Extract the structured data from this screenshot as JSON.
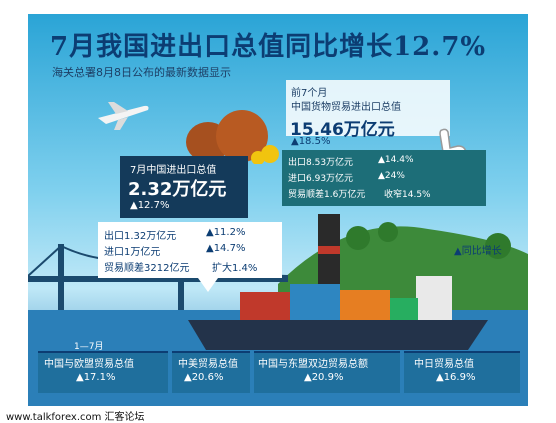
{
  "header": {
    "title": "7月我国进出口总值同比增长12.7%",
    "subtitle": "海关总署8月8日公布的最新数据显示"
  },
  "first_seven_months": {
    "label_line1": "前7个月",
    "label_line2": "中国货物贸易进出口总值",
    "total": "15.46万亿元",
    "total_growth": "▲18.5%",
    "export": "出口8.53万亿元",
    "export_growth": "▲14.4%",
    "import": "进口6.93万亿元",
    "import_growth": "▲24%",
    "surplus": "贸易顺差1.6万亿元",
    "surplus_change": "收窄14.5%"
  },
  "july": {
    "label": "7月中国进出口总值",
    "total": "2.32万亿元",
    "total_growth": "▲12.7%",
    "export": "出口1.32万亿元",
    "export_growth": "▲11.2%",
    "import": "进口1万亿元",
    "import_growth": "▲14.7%",
    "surplus": "贸易顺差3212亿元",
    "surplus_change": "扩大1.4%"
  },
  "legend": {
    "growth_label": "▲同比增长"
  },
  "bottom": {
    "period": "1—7月",
    "stats": [
      {
        "label": "中国与欧盟贸易总值",
        "value": "▲17.1%"
      },
      {
        "label": "中美贸易总值",
        "value": "▲20.6%"
      },
      {
        "label": "中国与东盟双边贸易总额",
        "value": "▲20.9%"
      },
      {
        "label": "中日贸易总值",
        "value": "▲16.9%"
      }
    ]
  },
  "footer": {
    "watermark": "www.talkforex.com 汇客论坛"
  },
  "colors": {
    "title": "#0c3d73",
    "sky": "#2aa4d6",
    "panel_dark": "#143a5a",
    "panel_teal": "#1d6e78",
    "stat_box": "#1f6f9d"
  }
}
